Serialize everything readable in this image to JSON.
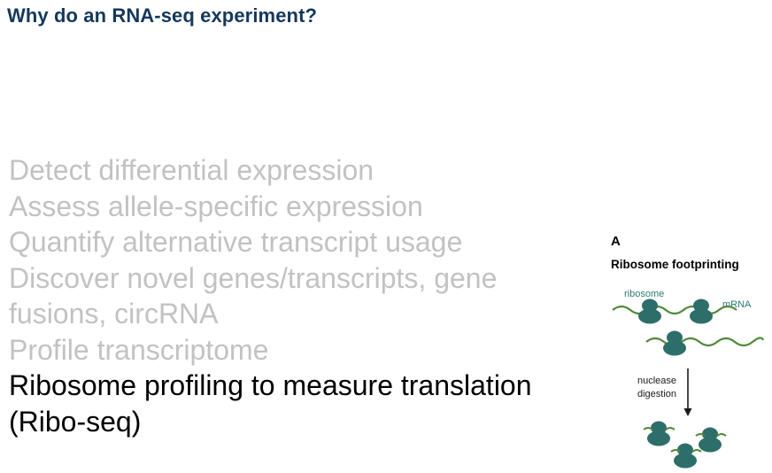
{
  "title": "Why do an RNA-seq experiment?",
  "bullets": [
    {
      "text": "Detect differential expression",
      "active": false
    },
    {
      "text": "Assess allele-specific expression",
      "active": false
    },
    {
      "text": "Quantify alternative transcript usage",
      "active": false
    },
    {
      "text": "Discover novel genes/transcripts, gene fusions, circRNA",
      "active": false
    },
    {
      "text": "Profile transcriptome",
      "active": false
    },
    {
      "text": "Ribosome profiling to measure translation (Ribo-seq)",
      "active": true
    }
  ],
  "figure": {
    "letter": "A",
    "title": "Ribosome footprinting",
    "label_ribosome": "ribosome",
    "label_mrna": "mRNA",
    "label_step_line1": "nuclease",
    "label_step_line2": "digestion"
  },
  "colors": {
    "title": "#14385c",
    "inactive_text": "#c2c2c2",
    "active_text": "#000000",
    "ribosome": "#2e6e6a",
    "mrna": "#4f8a3a"
  }
}
